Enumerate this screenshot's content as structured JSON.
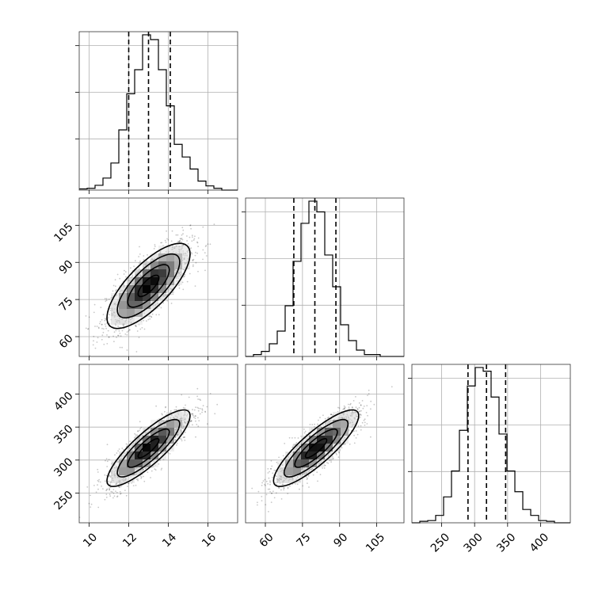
{
  "chart_data": {
    "type": "corner",
    "params": [
      {
        "id": "p0",
        "range": [
          9.5,
          17.5
        ],
        "ticks": [
          10,
          12,
          14,
          16
        ],
        "tick_labels": [
          "10",
          "12",
          "14",
          "16"
        ],
        "mean": 13.0,
        "sd": 1.05,
        "quantiles": [
          12.0,
          13.0,
          14.1
        ]
      },
      {
        "id": "p1",
        "range": [
          52,
          116
        ],
        "ticks": [
          60,
          75,
          90,
          105
        ],
        "tick_labels": [
          "60",
          "75",
          "90",
          "105"
        ],
        "mean": 80.5,
        "sd": 8.6,
        "quantiles": [
          71.5,
          80.0,
          88.5
        ]
      },
      {
        "id": "p2",
        "range": [
          205,
          445
        ],
        "ticks": [
          250,
          300,
          350,
          400
        ],
        "tick_labels": [
          "250",
          "300",
          "350",
          "400"
        ],
        "mean": 318,
        "sd": 29,
        "quantiles": [
          290,
          318,
          347
        ]
      }
    ],
    "histograms": [
      {
        "param": 0,
        "edges": [
          9.5,
          9.9,
          10.3,
          10.7,
          11.1,
          11.5,
          11.9,
          12.3,
          12.7,
          13.1,
          13.5,
          13.9,
          14.3,
          14.7,
          15.1,
          15.5,
          15.9,
          16.3,
          16.7,
          17.1,
          17.5
        ],
        "counts": [
          2,
          3,
          8,
          20,
          45,
          100,
          160,
          200,
          258,
          250,
          200,
          140,
          76,
          55,
          35,
          15,
          7,
          3,
          0,
          0
        ]
      },
      {
        "param": 1,
        "edges": [
          52,
          55.2,
          58.4,
          61.6,
          64.8,
          68,
          71.2,
          74.4,
          77.6,
          80.8,
          84,
          87.2,
          90.4,
          93.6,
          96.8,
          100,
          103.2,
          106.4,
          109.6,
          112.8,
          116
        ],
        "counts": [
          0,
          3,
          8,
          20,
          40,
          80,
          150,
          210,
          245,
          228,
          160,
          110,
          50,
          25,
          10,
          3,
          3,
          0,
          0,
          0
        ]
      },
      {
        "param": 2,
        "edges": [
          205,
          217,
          229,
          241,
          253,
          265,
          277,
          289,
          301,
          313,
          325,
          337,
          349,
          361,
          373,
          385,
          397,
          409,
          421,
          433,
          445
        ],
        "counts": [
          0,
          2,
          3,
          10,
          35,
          70,
          125,
          185,
          210,
          205,
          170,
          120,
          70,
          42,
          18,
          10,
          3,
          2,
          0,
          0
        ]
      }
    ],
    "correlations": {
      "1,0": 0.75,
      "2,0": 0.85,
      "2,1": 0.85
    },
    "contour_levels_sigma": [
      0.5,
      1.0,
      1.5,
      2.0
    ],
    "scatter_points_per_panel": 1600,
    "density_bins": 20,
    "grid": true,
    "quantile_lines": "dashed"
  }
}
